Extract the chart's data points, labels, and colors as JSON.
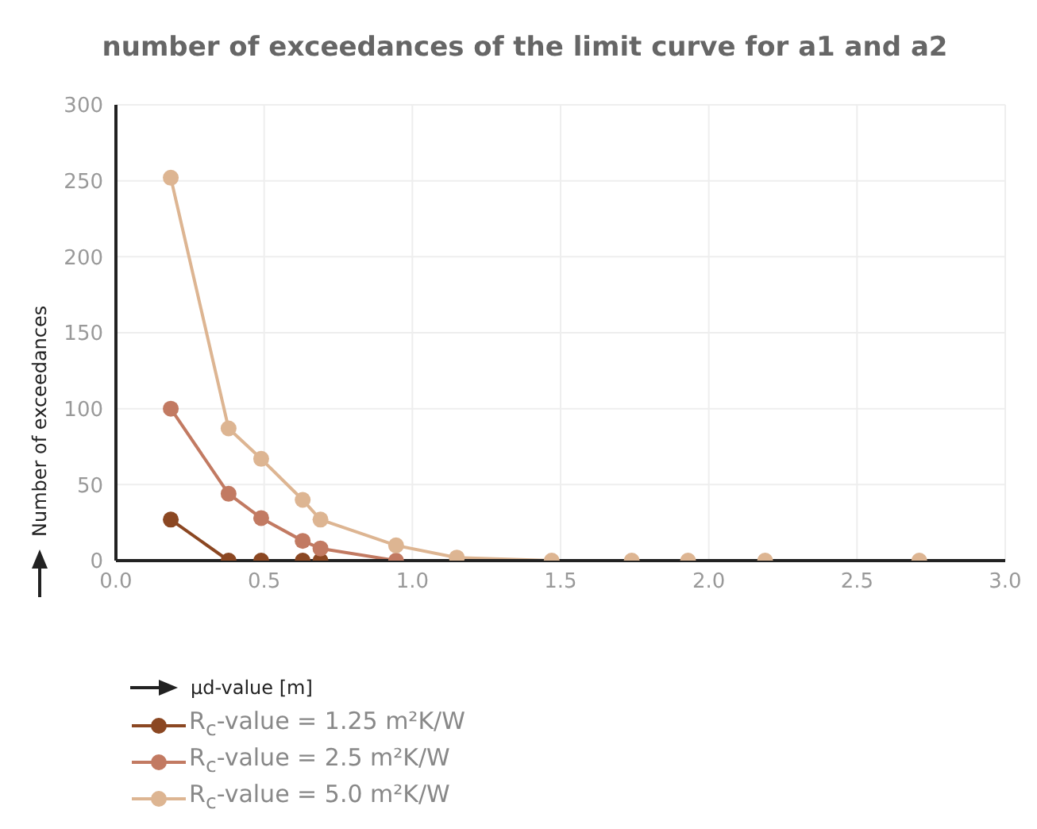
{
  "chart_data": {
    "type": "line",
    "title": "number of exceedances of the limit curve for a1 and a2",
    "xlabel": "μd-value [m]",
    "ylabel": "Number of exceedances",
    "x": [
      0.185,
      0.38,
      0.49,
      0.63,
      0.69,
      0.945,
      1.15,
      1.47,
      1.74,
      1.93,
      2.19,
      2.71
    ],
    "series": [
      {
        "name": "R$_{c}$-value = 1.25 m²K/W",
        "color": "#8b4722",
        "values": [
          27,
          0,
          0,
          0,
          0,
          null,
          null,
          null,
          null,
          null,
          null,
          null
        ]
      },
      {
        "name": "R$_{c}$-value = 2.5 m²K/W",
        "color": "#c27a62",
        "values": [
          100,
          44,
          28,
          13,
          8,
          0,
          null,
          null,
          null,
          null,
          null,
          null
        ]
      },
      {
        "name": "R$_{c}$-value = 5.0 m²K/W",
        "color": "#ddb592",
        "values": [
          252,
          87,
          67,
          40,
          27,
          10,
          2,
          0,
          0,
          0,
          0,
          0
        ]
      }
    ],
    "xlim": [
      0,
      3
    ],
    "xticks": [
      {
        "value": 0,
        "label": "0.0"
      },
      {
        "value": 0.5,
        "label": "0.5"
      },
      {
        "value": 1,
        "label": "1.0"
      },
      {
        "value": 1.5,
        "label": "1.5"
      },
      {
        "value": 2,
        "label": "2.0"
      },
      {
        "value": 2.5,
        "label": "2.5"
      },
      {
        "value": 3,
        "label": "3.0"
      }
    ],
    "ylim": [
      0,
      300
    ],
    "yticks": [
      0,
      50,
      100,
      150,
      200,
      250,
      300
    ],
    "grid": true,
    "legend": "bottom left",
    "marker": "circle",
    "line_style": "solid"
  }
}
